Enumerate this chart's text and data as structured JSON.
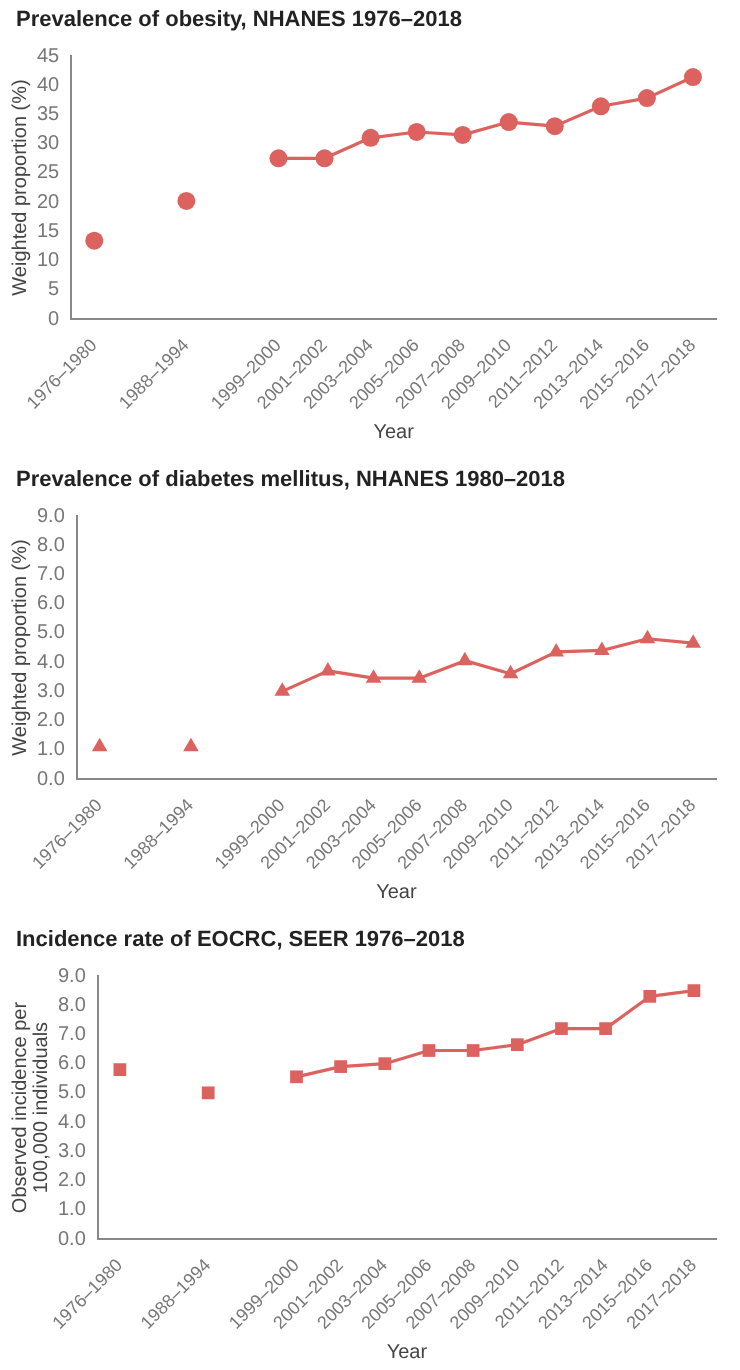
{
  "chart_data": [
    {
      "type": "line",
      "title": "Prevalence of obesity, NHANES 1976–2018",
      "xlabel": "Year",
      "ylabel": "Weighted proportion (%)",
      "categories": [
        "1976–1980",
        null,
        "1988–1994",
        null,
        "1999–2000",
        "2001–2002",
        "2003–2004",
        "2005–2006",
        "2007–2008",
        "2009–2010",
        "2011–2012",
        "2013–2014",
        "2015–2016",
        "2017–2018"
      ],
      "values": [
        13.4,
        null,
        20.2,
        null,
        27.5,
        27.5,
        31.0,
        32.0,
        31.5,
        33.7,
        33.0,
        36.4,
        37.8,
        41.4
      ],
      "color": "#dc625f",
      "ylim": [
        0,
        45
      ],
      "yticks": [
        0,
        5,
        10,
        15,
        20,
        25,
        30,
        35,
        40,
        45
      ],
      "marker": "circle",
      "grid": false,
      "legend": false
    },
    {
      "type": "line",
      "title": "Prevalence of diabetes mellitus, NHANES 1980–2018",
      "xlabel": "Year",
      "ylabel": "Weighted proportion (%)",
      "categories": [
        "1976–1980",
        null,
        "1988–1994",
        null,
        "1999–2000",
        "2001–2002",
        "2003–2004",
        "2005–2006",
        "2007–2008",
        "2009–2010",
        "2011–2012",
        "2013–2014",
        "2015–2016",
        "2017–2018"
      ],
      "values": [
        1.1,
        null,
        1.1,
        null,
        3.0,
        3.7,
        3.45,
        3.45,
        4.05,
        3.6,
        4.35,
        4.4,
        4.8,
        4.65
      ],
      "color": "#dc625f",
      "ylim": [
        0,
        9
      ],
      "yticks": [
        {
          "value": 0,
          "label": "0.0"
        },
        {
          "value": 1,
          "label": "1.0"
        },
        {
          "value": 2,
          "label": "2.0"
        },
        {
          "value": 3,
          "label": "3.0"
        },
        {
          "value": 4,
          "label": "4.0"
        },
        {
          "value": 5,
          "label": "5.0"
        },
        {
          "value": 6,
          "label": "6.0"
        },
        {
          "value": 7,
          "label": "7.0"
        },
        {
          "value": 8,
          "label": "8.0"
        },
        {
          "value": 9,
          "label": "9.0"
        }
      ],
      "marker": "triangle",
      "grid": false,
      "legend": false
    },
    {
      "type": "line",
      "title": "Incidence rate of EOCRC, SEER 1976–2018",
      "xlabel": "Year",
      "ylabel": "Observed incidence per 100,000 individuals",
      "categories": [
        "1976–1980",
        null,
        "1988–1994",
        null,
        "1999–2000",
        "2001–2002",
        "2003–2004",
        "2005–2006",
        "2007–2008",
        "2009–2010",
        "2011–2012",
        "2013–2014",
        "2015–2016",
        "2017–2018"
      ],
      "values": [
        5.8,
        null,
        5.0,
        null,
        5.55,
        5.9,
        6.0,
        6.45,
        6.45,
        6.65,
        7.2,
        7.2,
        8.3,
        8.5
      ],
      "color": "#dc625f",
      "ylim": [
        0,
        9
      ],
      "yticks": [
        {
          "value": 0,
          "label": "0.0"
        },
        {
          "value": 1,
          "label": "1.0"
        },
        {
          "value": 2,
          "label": "2.0"
        },
        {
          "value": 3,
          "label": "3.0"
        },
        {
          "value": 4,
          "label": "4.0"
        },
        {
          "value": 5,
          "label": "5.0"
        },
        {
          "value": 6,
          "label": "6.0"
        },
        {
          "value": 7,
          "label": "7.0"
        },
        {
          "value": 8,
          "label": "8.0"
        },
        {
          "value": 9,
          "label": "9.0"
        }
      ],
      "marker": "square",
      "grid": false,
      "legend": false
    }
  ]
}
